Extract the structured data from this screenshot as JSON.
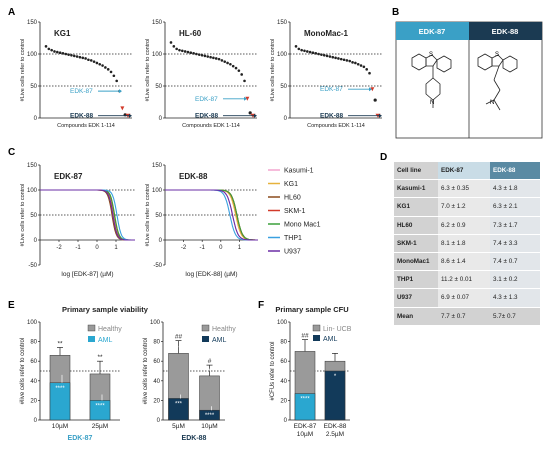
{
  "panels": {
    "A": "A",
    "B": "B",
    "C": "C",
    "D": "D",
    "E": "E",
    "F": "F"
  },
  "colors": {
    "edk87": "#3aa0c6",
    "edk88": "#1b3a52",
    "healthy": "#9a9a9a",
    "aml_light": "#2aa7d0",
    "aml_dark": "#123a5a",
    "red": "#d23a2a"
  },
  "structures": {
    "edk87_title": "EDK-87",
    "edk88_title": "EDK-88"
  },
  "table": {
    "headers": [
      "Cell line",
      "EDK-87",
      "EDK-88"
    ],
    "rows": [
      [
        "Kasumi-1",
        "6.3 ± 0.35",
        "4.3 ± 1.8"
      ],
      [
        "KG1",
        "7.0 ± 1.2",
        "6.3 ± 2.1"
      ],
      [
        "HL60",
        "6.2 ± 0.9",
        "7.3 ± 1.7"
      ],
      [
        "SKM-1",
        "8.1 ± 1.8",
        "7.4 ± 3.3"
      ],
      [
        "MonoMac1",
        "8.6 ± 1.4",
        "7.4 ± 0.7"
      ],
      [
        "THP1",
        "11.2 ± 0.01",
        "3.1 ± 0.2"
      ],
      [
        "U937",
        "6.9 ± 0.07",
        "4.3 ± 1.3"
      ],
      [
        "Mean",
        "7.7 ± 0.7",
        "5.7± 0.7"
      ]
    ]
  },
  "chart_data": [
    {
      "type": "scatter",
      "panel": "A",
      "title": "KG1",
      "xlabel": "Compounds EDK 1-114",
      "ylabel": "#Live cells refer to control",
      "ylim": [
        0,
        150
      ],
      "yticks": [
        0,
        50,
        100,
        150
      ],
      "reference_lines": [
        50,
        100
      ],
      "annotations": [
        {
          "text": "EDK-87",
          "value": 42
        },
        {
          "text": "EDK-88",
          "value": 2
        }
      ],
      "values": [
        112,
        108,
        106,
        104,
        103,
        102,
        101,
        100,
        99,
        98,
        97,
        96,
        95,
        94,
        93,
        91,
        90,
        88,
        86,
        84,
        82,
        79,
        76,
        72,
        66,
        58,
        42,
        15,
        5,
        2
      ]
    },
    {
      "type": "scatter",
      "panel": "A",
      "title": "HL-60",
      "xlabel": "Compounds EDK 1-114",
      "ylabel": "#Live cells refer to control",
      "ylim": [
        0,
        150
      ],
      "yticks": [
        0,
        50,
        100,
        150
      ],
      "reference_lines": [
        50,
        100
      ],
      "annotations": [
        {
          "text": "EDK-87",
          "value": 30
        },
        {
          "text": "EDK-88",
          "value": 2
        }
      ],
      "values": [
        118,
        112,
        108,
        106,
        105,
        104,
        103,
        102,
        101,
        100,
        99,
        98,
        97,
        96,
        95,
        94,
        93,
        92,
        90,
        88,
        86,
        84,
        81,
        78,
        74,
        68,
        58,
        30,
        8,
        2
      ]
    },
    {
      "type": "scatter",
      "panel": "A",
      "title": "MonoMac-1",
      "xlabel": "Compounds EDK 1-114",
      "ylabel": "#Live cells refer to control",
      "ylim": [
        0,
        150
      ],
      "yticks": [
        0,
        50,
        100,
        150
      ],
      "reference_lines": [
        50,
        100
      ],
      "annotations": [
        {
          "text": "EDK-87",
          "value": 45
        },
        {
          "text": "EDK-88",
          "value": 2
        }
      ],
      "values": [
        112,
        108,
        106,
        105,
        104,
        103,
        102,
        101,
        100,
        99,
        98,
        97,
        96,
        95,
        94,
        93,
        92,
        91,
        90,
        89,
        87,
        86,
        84,
        82,
        80,
        76,
        70,
        45,
        28,
        2
      ]
    },
    {
      "type": "line",
      "panel": "C",
      "title": "EDK-87",
      "xlabel": "log [EDK-87] (µM)",
      "ylabel": "#Live cells refer to control",
      "xlim": [
        -3,
        2
      ],
      "ylim": [
        -50,
        150
      ],
      "yticks": [
        -50,
        0,
        50,
        100,
        150
      ],
      "xticks": [
        -2,
        -1,
        0,
        1
      ],
      "reference_lines": [
        0,
        50,
        100
      ],
      "series": [
        {
          "name": "Kasumi-1",
          "color": "#f2a6cf",
          "ic50_log": 0.8,
          "hill": 4
        },
        {
          "name": "KG1",
          "color": "#e6b23c",
          "ic50_log": 0.85,
          "hill": 4
        },
        {
          "name": "HL60",
          "color": "#8a4a1c",
          "ic50_log": 0.79,
          "hill": 4
        },
        {
          "name": "SKM-1",
          "color": "#d23a2a",
          "ic50_log": 0.91,
          "hill": 4
        },
        {
          "name": "Mono Mac1",
          "color": "#3aa13a",
          "ic50_log": 0.93,
          "hill": 4
        },
        {
          "name": "THP1",
          "color": "#3aa0e0",
          "ic50_log": 1.05,
          "hill": 4
        },
        {
          "name": "U937",
          "color": "#6a2ea6",
          "ic50_log": 0.84,
          "hill": 4
        }
      ]
    },
    {
      "type": "line",
      "panel": "C",
      "title": "EDK-88",
      "xlabel": "log [EDK-88] (µM)",
      "ylabel": "#Live cells refer to control",
      "xlim": [
        -3,
        2
      ],
      "ylim": [
        -50,
        150
      ],
      "yticks": [
        -50,
        0,
        50,
        100,
        150
      ],
      "xticks": [
        -2,
        -1,
        0,
        1
      ],
      "reference_lines": [
        0,
        50,
        100
      ],
      "series": [
        {
          "name": "Kasumi-1",
          "color": "#f2a6cf",
          "ic50_log": 0.63,
          "hill": 3
        },
        {
          "name": "KG1",
          "color": "#e6b23c",
          "ic50_log": 0.8,
          "hill": 3
        },
        {
          "name": "HL60",
          "color": "#8a4a1c",
          "ic50_log": 0.86,
          "hill": 3
        },
        {
          "name": "SKM-1",
          "color": "#d23a2a",
          "ic50_log": 0.87,
          "hill": 3
        },
        {
          "name": "Mono Mac1",
          "color": "#3aa13a",
          "ic50_log": 0.87,
          "hill": 3
        },
        {
          "name": "THP1",
          "color": "#3aa0e0",
          "ic50_log": 0.49,
          "hill": 3
        },
        {
          "name": "U937",
          "color": "#6a2ea6",
          "ic50_log": 0.63,
          "hill": 3
        }
      ]
    },
    {
      "type": "bar",
      "panel": "E",
      "title": "Primary sample viability",
      "ylabel": "#live cells refer to control",
      "ylim": [
        0,
        100
      ],
      "yticks": [
        0,
        20,
        40,
        60,
        80,
        100
      ],
      "groups": [
        {
          "label": "EDK-87",
          "categories": [
            "10µM",
            "25µM"
          ],
          "healthy": [
            66,
            47
          ],
          "aml": [
            38,
            20
          ],
          "healthy_err": [
            8,
            13
          ],
          "aml_err": [
            8,
            6
          ],
          "sig_healthy": [
            "**",
            "**"
          ],
          "sig_aml": [
            "****",
            "****"
          ]
        },
        {
          "label": "EDK-88",
          "categories": [
            "5µM",
            "10µM"
          ],
          "healthy": [
            68,
            45
          ],
          "aml": [
            22,
            10
          ],
          "healthy_err": [
            13,
            11
          ],
          "aml_err": [
            4,
            4
          ],
          "sig_healthy": [
            "##",
            "#"
          ],
          "sig_healthy2": [
            "**",
            "*"
          ],
          "sig_aml": [
            "***",
            "****"
          ]
        }
      ],
      "legend": [
        "Healthy",
        "AML"
      ],
      "reference_lines": [
        50
      ]
    },
    {
      "type": "bar",
      "panel": "F",
      "title": "Primary sample CFU",
      "ylabel": "#CFUs refer to control",
      "ylim": [
        0,
        100
      ],
      "yticks": [
        0,
        20,
        40,
        60,
        80,
        100
      ],
      "categories": [
        "EDK-87\n10µM",
        "EDK-88\n2.5µM"
      ],
      "healthy": [
        70,
        60
      ],
      "aml": [
        27,
        50
      ],
      "healthy_err": [
        12,
        8
      ],
      "aml_err": [
        10,
        12
      ],
      "sig_healthy": [
        "##",
        ""
      ],
      "sig_aml": [
        "****",
        "*"
      ],
      "legend": [
        "Lin- UCB",
        "AML"
      ],
      "reference_lines": [
        50
      ]
    }
  ]
}
